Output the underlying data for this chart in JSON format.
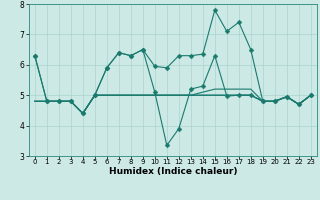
{
  "title": "",
  "xlabel": "Humidex (Indice chaleur)",
  "bg_color": "#cce9e5",
  "grid_color": "#aad4cf",
  "line_color": "#1a7a6e",
  "spine_color": "#2a8a7e",
  "xlim": [
    -0.5,
    23.5
  ],
  "ylim": [
    3,
    8
  ],
  "xticks": [
    0,
    1,
    2,
    3,
    4,
    5,
    6,
    7,
    8,
    9,
    10,
    11,
    12,
    13,
    14,
    15,
    16,
    17,
    18,
    19,
    20,
    21,
    22,
    23
  ],
  "yticks": [
    3,
    4,
    5,
    6,
    7,
    8
  ],
  "lines": [
    {
      "y": [
        6.3,
        4.8,
        4.8,
        4.8,
        4.4,
        5.0,
        5.9,
        6.4,
        6.3,
        6.5,
        5.95,
        5.9,
        6.3,
        6.3,
        6.35,
        7.8,
        7.1,
        7.4,
        6.5,
        4.8,
        4.8,
        4.95,
        4.7,
        5.0
      ],
      "marker": true
    },
    {
      "y": [
        6.3,
        4.8,
        4.8,
        4.8,
        4.4,
        5.0,
        5.9,
        6.4,
        6.3,
        6.5,
        5.1,
        3.35,
        3.9,
        5.2,
        5.3,
        6.3,
        4.97,
        5.0,
        5.0,
        4.8,
        4.8,
        4.95,
        4.7,
        5.0
      ],
      "marker": true
    },
    {
      "y": [
        4.8,
        4.8,
        4.8,
        4.8,
        4.4,
        5.0,
        5.0,
        5.0,
        5.0,
        5.0,
        5.0,
        5.0,
        5.0,
        5.0,
        5.0,
        5.0,
        5.0,
        5.0,
        5.0,
        4.8,
        4.8,
        4.95,
        4.7,
        5.0
      ],
      "marker": false
    },
    {
      "y": [
        4.8,
        4.8,
        4.8,
        4.8,
        4.4,
        5.0,
        5.0,
        5.0,
        5.0,
        5.0,
        5.0,
        5.0,
        5.0,
        5.0,
        5.0,
        5.0,
        5.0,
        5.0,
        5.0,
        4.8,
        4.8,
        4.95,
        4.7,
        5.0
      ],
      "marker": false
    },
    {
      "y": [
        4.8,
        4.8,
        4.8,
        4.8,
        4.4,
        5.0,
        5.0,
        5.0,
        5.0,
        5.0,
        5.0,
        5.0,
        5.0,
        5.0,
        5.1,
        5.2,
        5.2,
        5.2,
        5.2,
        4.8,
        4.8,
        4.95,
        4.7,
        5.0
      ],
      "marker": false
    }
  ],
  "marker_symbol": "D",
  "markersize": 2.5,
  "linewidth": 0.8,
  "xlabel_fontsize": 6.5,
  "tick_fontsize": 5.0
}
